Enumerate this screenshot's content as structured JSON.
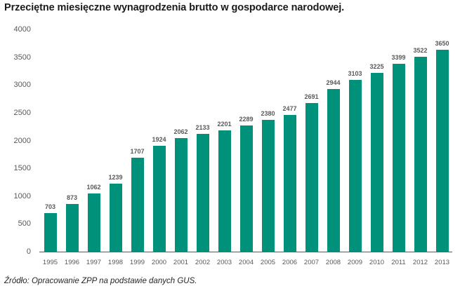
{
  "chart_data": {
    "type": "bar",
    "title": "Przeciętne miesięczne wynagrodzenia brutto w gospodarce narodowej.",
    "xlabel": "",
    "ylabel": "",
    "categories": [
      "1995",
      "1996",
      "1997",
      "1998",
      "1999",
      "2000",
      "2001",
      "2002",
      "2003",
      "2004",
      "2005",
      "2006",
      "2007",
      "2008",
      "2009",
      "2010",
      "2011",
      "2012",
      "2013"
    ],
    "values": [
      703,
      873,
      1062,
      1239,
      1707,
      1924,
      2062,
      2133,
      2201,
      2289,
      2380,
      2477,
      2691,
      2944,
      3103,
      3225,
      3399,
      3522,
      3650
    ],
    "ylim": [
      0,
      4000
    ],
    "yticks": [
      "0",
      "500",
      "1000",
      "1500",
      "2000",
      "2500",
      "3000",
      "3500",
      "4000"
    ],
    "grid": false,
    "legend": null,
    "data_labels": true,
    "bar_color": "#00917a",
    "source": "Źródło: Opracowanie ZPP na podstawie danych GUS."
  },
  "title": "Przeciętne miesięczne wynagrodzenia brutto w gospodarce narodowej.",
  "source": "Źródło: Opracowanie ZPP na podstawie danych GUS."
}
